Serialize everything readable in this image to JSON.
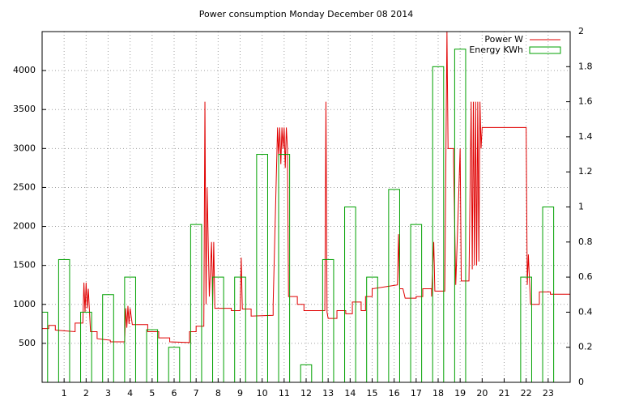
{
  "chart_data": {
    "type": "line",
    "title": "Power consumption Monday December 08 2014",
    "xlim": [
      0,
      24
    ],
    "xticks": [
      1,
      2,
      3,
      4,
      5,
      6,
      7,
      8,
      9,
      10,
      11,
      12,
      13,
      14,
      15,
      16,
      17,
      18,
      19,
      20,
      21,
      22,
      23
    ],
    "ylim": [
      0,
      4500
    ],
    "yticks": [
      500,
      1000,
      1500,
      2000,
      2500,
      3000,
      3500,
      4000
    ],
    "y2lim": [
      0,
      2
    ],
    "y2ticks": [
      0,
      0.2,
      0.4,
      0.6,
      0.8,
      1,
      1.2,
      1.4,
      1.6,
      1.8,
      2
    ],
    "grid": true,
    "legend": "top-right",
    "series": [
      {
        "name": "Power W",
        "type": "line",
        "color": "#e00000",
        "x": [
          0,
          0.3,
          0.3,
          0.6,
          0.6,
          1.5,
          1.5,
          1.85,
          1.9,
          1.95,
          2.0,
          2.05,
          2.1,
          2.2,
          2.5,
          2.5,
          3.1,
          3.1,
          3.75,
          3.8,
          3.85,
          3.9,
          3.95,
          4.0,
          4.1,
          4.8,
          4.8,
          5.3,
          5.3,
          5.8,
          5.8,
          6.7,
          6.7,
          7.0,
          7.0,
          7.35,
          7.4,
          7.45,
          7.5,
          7.6,
          7.7,
          7.75,
          7.8,
          7.85,
          8.6,
          8.6,
          9.0,
          9.05,
          9.1,
          9.5,
          9.5,
          10.5,
          10.5,
          10.7,
          10.75,
          10.8,
          10.85,
          10.9,
          10.95,
          11.0,
          11.05,
          11.1,
          11.15,
          11.2,
          11.6,
          11.6,
          11.9,
          11.9,
          12.85,
          12.9,
          12.95,
          13.0,
          13.4,
          13.4,
          13.8,
          13.8,
          14.1,
          14.1,
          14.5,
          14.5,
          14.7,
          14.7,
          15.0,
          15.0,
          15.7,
          16.15,
          16.2,
          16.25,
          16.4,
          16.5,
          17.0,
          17.0,
          17.3,
          17.3,
          17.7,
          17.7,
          17.8,
          17.85,
          18.3,
          18.4,
          18.45,
          18.7,
          18.7,
          18.8,
          18.9,
          19.0,
          19.05,
          19.4,
          19.5,
          19.55,
          19.6,
          19.65,
          19.7,
          19.75,
          19.8,
          19.85,
          19.9,
          19.95,
          20.0,
          22.0,
          22.05,
          22.1,
          22.2,
          22.6,
          22.6,
          23.1,
          23.1,
          24
        ],
        "values": [
          690,
          690,
          730,
          730,
          670,
          650,
          760,
          760,
          1280,
          900,
          1280,
          950,
          1200,
          650,
          650,
          560,
          540,
          520,
          520,
          950,
          700,
          980,
          750,
          950,
          740,
          740,
          650,
          650,
          570,
          570,
          520,
          510,
          650,
          650,
          720,
          720,
          3600,
          1000,
          2500,
          1100,
          1800,
          1000,
          1800,
          950,
          950,
          920,
          920,
          1600,
          940,
          940,
          850,
          860,
          1000,
          3270,
          2900,
          3270,
          2800,
          3270,
          3000,
          3270,
          2750,
          3270,
          3000,
          1100,
          1100,
          1000,
          1000,
          920,
          920,
          3600,
          900,
          820,
          820,
          920,
          920,
          880,
          880,
          1030,
          1030,
          920,
          920,
          1100,
          1100,
          1200,
          1230,
          1250,
          1900,
          1200,
          1200,
          1080,
          1080,
          1100,
          1100,
          1200,
          1200,
          1100,
          1800,
          1170,
          1170,
          4500,
          3000,
          3000,
          2850,
          1250,
          2100,
          3000,
          1300,
          1300,
          3600,
          1450,
          3600,
          1500,
          3600,
          1500,
          3600,
          1550,
          3600,
          3000,
          3270,
          3270,
          1250,
          1640,
          1000,
          1000,
          1160,
          1160,
          1130,
          1130
        ]
      },
      {
        "name": "Energy KWh",
        "type": "bar",
        "axis": "y2",
        "color": "#00a000",
        "x": [
          0,
          1,
          2,
          3,
          4,
          5,
          6,
          7,
          8,
          9,
          10,
          11,
          12,
          13,
          14,
          15,
          16,
          17,
          18,
          19,
          20,
          21,
          22,
          23
        ],
        "values": [
          0.4,
          0.7,
          0.4,
          0.5,
          0.6,
          0.3,
          0.2,
          0.9,
          0.6,
          0.6,
          1.3,
          1.3,
          0.1,
          0.7,
          1.0,
          0.6,
          1.1,
          0.9,
          1.8,
          1.9,
          null,
          null,
          0.6,
          1.0
        ]
      }
    ]
  }
}
